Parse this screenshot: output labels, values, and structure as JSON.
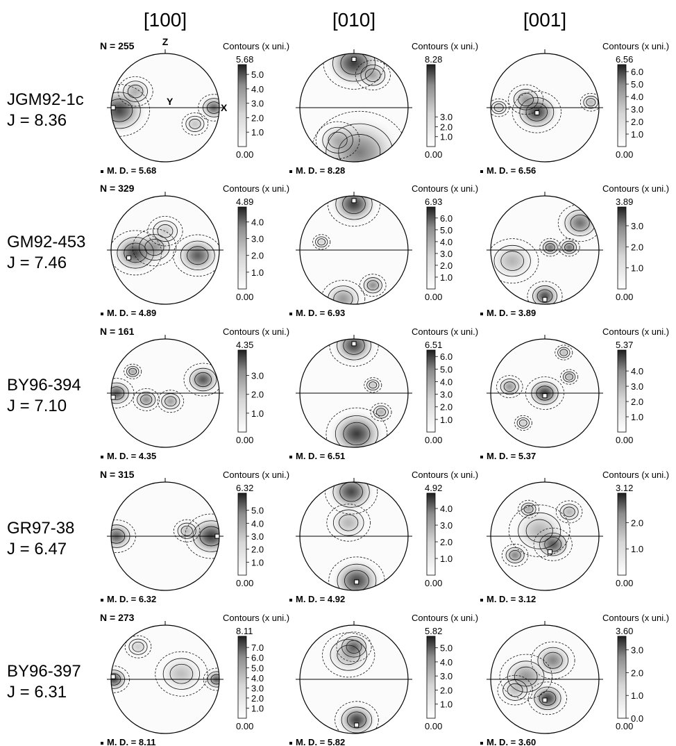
{
  "column_headers": [
    "[100]",
    "[010]",
    "[001]"
  ],
  "axis_labels": {
    "z": "Z",
    "y": "Y",
    "x": "X"
  },
  "contours_title": "Contours (x uni.)",
  "min_label": "0.00",
  "md_prefix": "M. D. =",
  "rows": [
    {
      "sample": "JGM92-1c",
      "j_index": "J = 8.36",
      "n_label": "N = 255",
      "panels": [
        {
          "max": "5.68",
          "md": "5.68",
          "ticks": [
            "5.0",
            "4.0",
            "3.0",
            "2.0",
            "1.0"
          ],
          "max_at": [
            -1.0,
            0.0
          ],
          "blobs": [
            [
              -0.85,
              -0.05,
              0.35,
              0.9
            ],
            [
              0.9,
              0.0,
              0.18,
              0.8
            ],
            [
              -0.55,
              0.3,
              0.2,
              0.4
            ],
            [
              0.55,
              -0.3,
              0.15,
              0.3
            ]
          ]
        },
        {
          "max": "8.28",
          "md": "8.28",
          "ticks": [
            "3.0",
            "2.0",
            "1.0"
          ],
          "max_at": [
            0.0,
            0.93
          ],
          "blobs": [
            [
              0.0,
              0.82,
              0.35,
              0.95
            ],
            [
              0.35,
              0.6,
              0.2,
              0.45
            ],
            [
              0.1,
              -0.82,
              0.55,
              0.6
            ],
            [
              -0.3,
              -0.6,
              0.25,
              0.3
            ]
          ]
        },
        {
          "max": "6.56",
          "md": "6.56",
          "ticks": [
            "6.0",
            "5.0",
            "4.0",
            "3.0",
            "2.0",
            "1.0"
          ],
          "max_at": [
            -0.15,
            -0.1
          ],
          "blobs": [
            [
              -0.15,
              -0.08,
              0.28,
              0.95
            ],
            [
              -0.35,
              0.15,
              0.2,
              0.5
            ],
            [
              0.85,
              0.1,
              0.12,
              0.4
            ],
            [
              -0.85,
              0.0,
              0.12,
              0.3
            ]
          ]
        }
      ]
    },
    {
      "sample": "GM92-453",
      "j_index": "J = 7.46",
      "n_label": "N = 329",
      "panels": [
        {
          "max": "4.89",
          "md": "4.89",
          "ticks": [
            "4.0",
            "3.0",
            "2.0",
            "1.0"
          ],
          "max_at": [
            -0.7,
            -0.15
          ],
          "blobs": [
            [
              -0.55,
              -0.05,
              0.3,
              0.9
            ],
            [
              0.6,
              -0.1,
              0.28,
              0.8
            ],
            [
              -0.2,
              0.05,
              0.25,
              0.5
            ],
            [
              0.0,
              0.35,
              0.2,
              0.25
            ]
          ]
        },
        {
          "max": "6.93",
          "md": "6.93",
          "ticks": [
            "6.0",
            "5.0",
            "4.0",
            "3.0",
            "2.0",
            "1.0"
          ],
          "max_at": [
            0.0,
            0.95
          ],
          "blobs": [
            [
              0.0,
              0.85,
              0.3,
              0.95
            ],
            [
              0.35,
              -0.65,
              0.15,
              0.6
            ],
            [
              -0.2,
              -0.9,
              0.25,
              0.5
            ],
            [
              -0.6,
              0.15,
              0.1,
              0.25
            ]
          ]
        },
        {
          "max": "3.89",
          "md": "3.89",
          "ticks": [
            "3.0",
            "2.0",
            "1.0"
          ],
          "max_at": [
            0.0,
            -0.95
          ],
          "blobs": [
            [
              0.0,
              -0.85,
              0.2,
              0.9
            ],
            [
              0.1,
              0.05,
              0.12,
              0.8
            ],
            [
              0.45,
              0.05,
              0.12,
              0.8
            ],
            [
              0.65,
              0.5,
              0.25,
              0.7
            ],
            [
              -0.6,
              -0.2,
              0.3,
              0.35
            ]
          ]
        }
      ]
    },
    {
      "sample": "BY96-394",
      "j_index": "J = 7.10",
      "n_label": "N = 161",
      "panels": [
        {
          "max": "4.35",
          "md": "4.35",
          "ticks": [
            "3.0",
            "2.0",
            "1.0"
          ],
          "max_at": [
            -1.0,
            -0.08
          ],
          "blobs": [
            [
              -0.9,
              0.0,
              0.2,
              0.85
            ],
            [
              0.7,
              0.25,
              0.22,
              0.85
            ],
            [
              -0.35,
              -0.12,
              0.15,
              0.6
            ],
            [
              0.1,
              -0.15,
              0.15,
              0.5
            ],
            [
              -0.6,
              0.4,
              0.1,
              0.55
            ]
          ]
        },
        {
          "max": "6.51",
          "md": "6.51",
          "ticks": [
            "6.0",
            "5.0",
            "4.0",
            "3.0",
            "2.0",
            "1.0"
          ],
          "max_at": [
            0.0,
            0.95
          ],
          "blobs": [
            [
              0.0,
              0.88,
              0.28,
              0.9
            ],
            [
              0.05,
              -0.75,
              0.35,
              0.95
            ],
            [
              0.5,
              -0.35,
              0.12,
              0.45
            ],
            [
              0.35,
              0.15,
              0.1,
              0.35
            ]
          ]
        },
        {
          "max": "5.37",
          "md": "5.37",
          "ticks": [
            "4.0",
            "3.0",
            "2.0",
            "1.0"
          ],
          "max_at": [
            0.0,
            -0.05
          ],
          "blobs": [
            [
              0.0,
              0.0,
              0.22,
              0.95
            ],
            [
              -0.65,
              0.12,
              0.15,
              0.55
            ],
            [
              0.45,
              0.3,
              0.1,
              0.45
            ],
            [
              0.35,
              0.75,
              0.1,
              0.4
            ],
            [
              -0.4,
              -0.55,
              0.1,
              0.3
            ]
          ]
        }
      ]
    },
    {
      "sample": "GR97-38",
      "j_index": "J = 6.47",
      "n_label": "N = 315",
      "panels": [
        {
          "max": "6.32",
          "md": "6.32",
          "ticks": [
            "5.0",
            "4.0",
            "3.0",
            "2.0",
            "1.0"
          ],
          "max_at": [
            1.0,
            0.0
          ],
          "blobs": [
            [
              0.85,
              0.0,
              0.3,
              0.95
            ],
            [
              -0.9,
              0.0,
              0.22,
              0.8
            ],
            [
              0.4,
              0.1,
              0.15,
              0.35
            ]
          ]
        },
        {
          "max": "4.92",
          "md": "4.92",
          "ticks": [
            "4.0",
            "3.0",
            "2.0",
            "1.0"
          ],
          "max_at": [
            0.05,
            -0.88
          ],
          "blobs": [
            [
              -0.05,
              0.82,
              0.3,
              0.9
            ],
            [
              0.05,
              -0.82,
              0.32,
              0.9
            ],
            [
              -0.1,
              0.25,
              0.25,
              0.35
            ]
          ]
        },
        {
          "max": "3.12",
          "md": "3.12",
          "ticks": [
            "2.0",
            "1.0"
          ],
          "max_at": [
            0.1,
            -0.3
          ],
          "blobs": [
            [
              0.15,
              -0.15,
              0.22,
              0.9
            ],
            [
              -0.55,
              -0.35,
              0.15,
              0.65
            ],
            [
              -0.3,
              0.5,
              0.12,
              0.5
            ],
            [
              0.45,
              0.45,
              0.15,
              0.4
            ],
            [
              -0.1,
              0.1,
              0.35,
              0.35
            ]
          ]
        }
      ]
    },
    {
      "sample": "BY96-397",
      "j_index": "J = 6.31",
      "n_label": "N = 273",
      "panels": [
        {
          "max": "8.11",
          "md": "8.11",
          "ticks": [
            "7.0",
            "6.0",
            "5.0",
            "4.0",
            "3.0",
            "2.0",
            "1.0"
          ],
          "max_at": [
            -1.0,
            0.05
          ],
          "blobs": [
            [
              -0.95,
              0.0,
              0.18,
              0.95
            ],
            [
              0.95,
              0.0,
              0.15,
              0.85
            ],
            [
              0.3,
              0.1,
              0.3,
              0.3
            ],
            [
              -0.5,
              0.6,
              0.15,
              0.25
            ]
          ]
        },
        {
          "max": "5.82",
          "md": "5.82",
          "ticks": [
            "5.0",
            "4.0",
            "3.0",
            "2.0",
            "1.0"
          ],
          "max_at": [
            0.05,
            -0.88
          ],
          "blobs": [
            [
              0.0,
              0.6,
              0.2,
              0.85
            ],
            [
              0.05,
              -0.75,
              0.25,
              0.95
            ],
            [
              -0.1,
              0.45,
              0.3,
              0.35
            ]
          ]
        },
        {
          "max": "3.60",
          "md": "3.60",
          "ticks": [
            "3.0",
            "2.0",
            "1.0",
            "0.0"
          ],
          "max_at": [
            0.0,
            -0.4
          ],
          "blobs": [
            [
              0.05,
              -0.35,
              0.22,
              0.95
            ],
            [
              0.15,
              0.35,
              0.25,
              0.6
            ],
            [
              -0.35,
              0.05,
              0.3,
              0.5
            ],
            [
              -0.55,
              -0.2,
              0.2,
              0.3
            ]
          ]
        }
      ]
    }
  ]
}
